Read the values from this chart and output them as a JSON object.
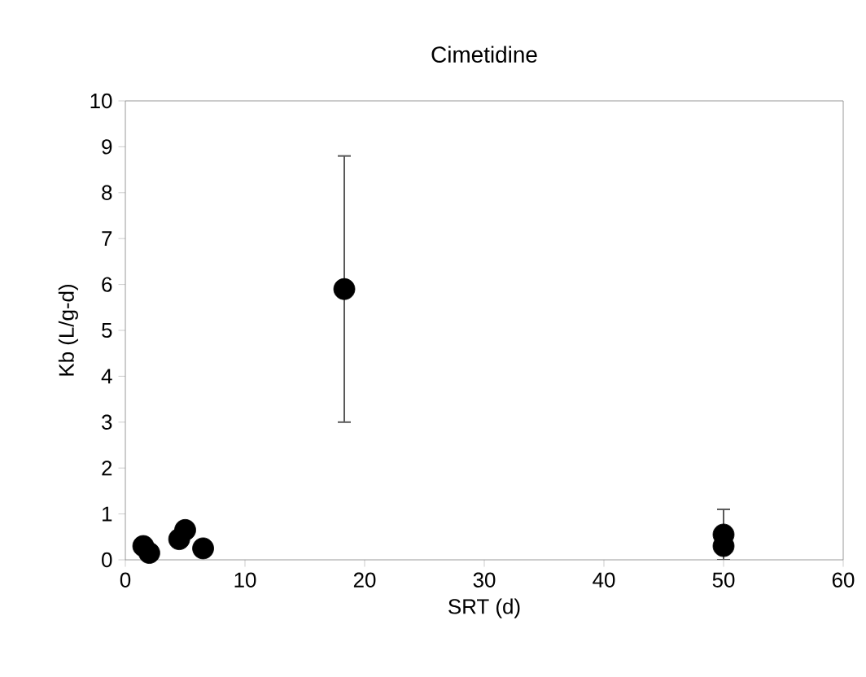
{
  "chart_data": {
    "type": "scatter",
    "title": "Cimetidine",
    "xlabel": "SRT (d)",
    "ylabel": "Kb (L/g-d)",
    "x": [
      1.5,
      2,
      4.5,
      5,
      6.5,
      18.3,
      50,
      50
    ],
    "values": [
      0.3,
      0.15,
      0.45,
      0.65,
      0.25,
      5.9,
      0.55,
      0.3
    ],
    "errors": [
      null,
      null,
      null,
      0.15,
      null,
      2.9,
      0.55,
      null
    ],
    "color": "#000000",
    "marker": "circle",
    "grid": false,
    "legend": false,
    "xlim": [
      0,
      60
    ],
    "ylim": [
      0,
      10
    ],
    "xticks": [
      0,
      10,
      20,
      30,
      40,
      50,
      60
    ],
    "yticks": [
      0,
      1,
      2,
      3,
      4,
      5,
      6,
      7,
      8,
      9,
      10
    ]
  }
}
